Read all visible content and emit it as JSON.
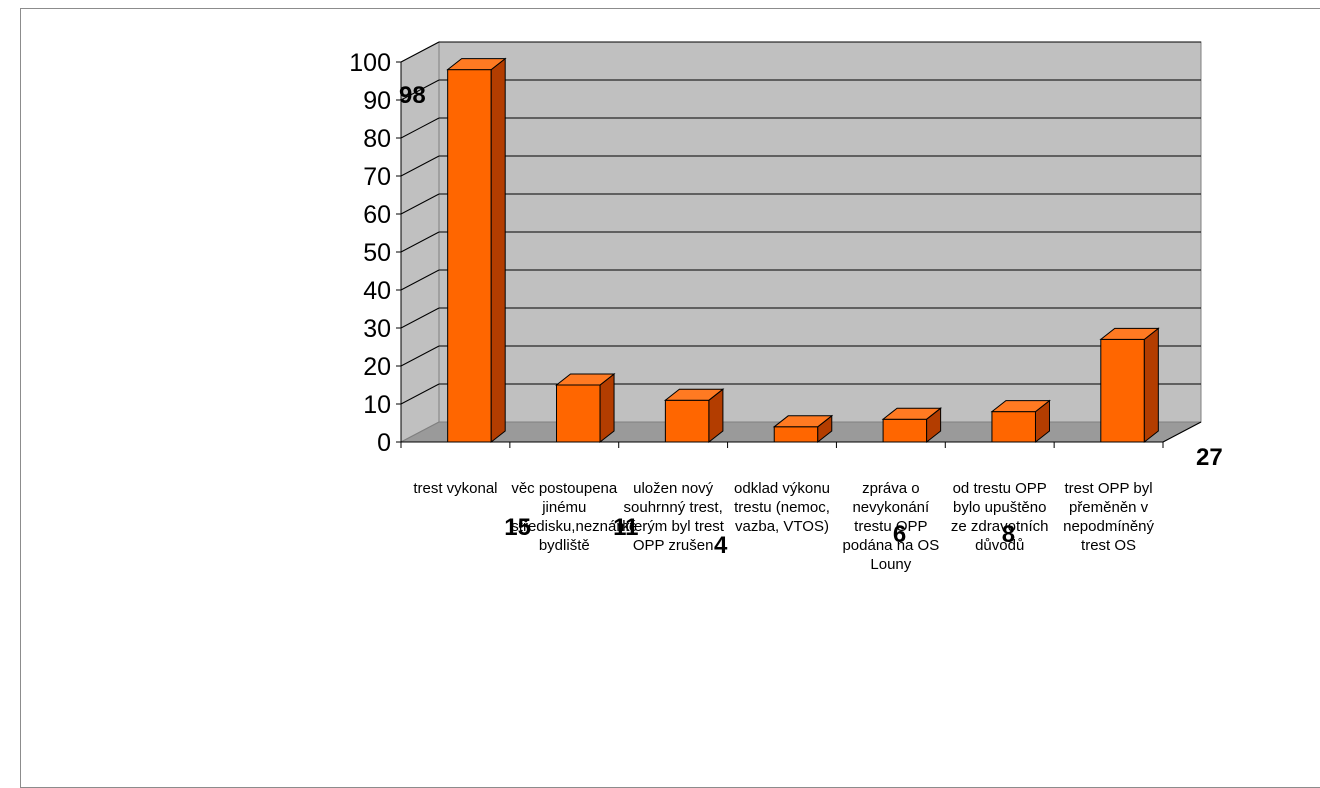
{
  "chart_data": {
    "type": "bar",
    "title": "",
    "xlabel": "",
    "ylabel": "",
    "ylim": [
      0,
      100
    ],
    "yticks": [
      "0",
      "10",
      "20",
      "30",
      "40",
      "50",
      "60",
      "70",
      "80",
      "90",
      "100"
    ],
    "grid": true,
    "three_d": true,
    "categories": [
      "trest vykonal",
      "věc postoupena jinému středisku,neznámé bydliště",
      "uložen nový souhrnný trest, kterým byl trest OPP zrušen",
      "odklad výkonu trestu (nemoc, vazba, VTOS)",
      "zpráva o nevykonání trestu OPP podána na OS Louny",
      "od trestu OPP bylo upuštěno ze zdravotních důvodů",
      "trest OPP byl přeměněn v nepodmíněný trest OS"
    ],
    "values": [
      98,
      15,
      11,
      4,
      6,
      8,
      27
    ],
    "data_labels": [
      "98",
      "15",
      "11",
      "4",
      "6",
      "8",
      "27"
    ],
    "colors": {
      "bar_front": "#ff6600",
      "bar_top": "#ff7a22",
      "bar_side": "#b33d00",
      "wall": "#c0c0c0",
      "floor": "#9a9a9a",
      "grid": "#000000"
    }
  }
}
